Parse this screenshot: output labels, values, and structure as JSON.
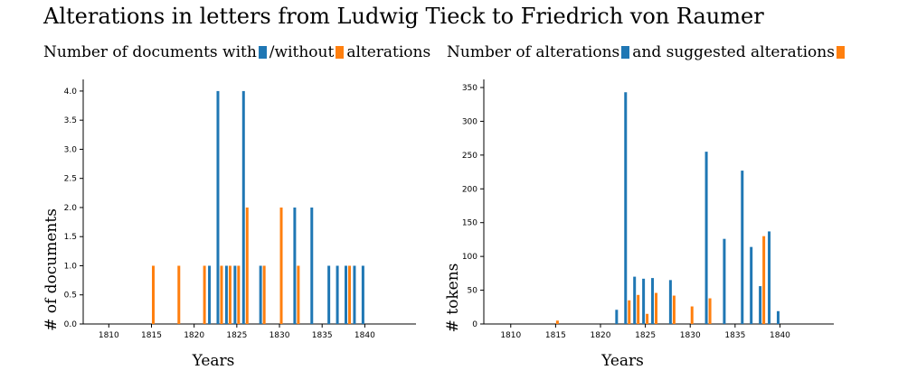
{
  "title": "Alterations in letters from Ludwig Tieck to Friedrich von Raumer",
  "colors": {
    "primary": "#1f77b4",
    "secondary": "#ff7f0e"
  },
  "legends": [
    {
      "part1": "Number of documents with",
      "part2": "/without",
      "part3": "alterations"
    },
    {
      "part1": "Number of alterations",
      "part2": "and suggested alterations",
      "part3": ""
    }
  ],
  "chart_data": [
    {
      "type": "bar",
      "xlabel": "Years",
      "ylabel": "# of documents",
      "xlim": [
        1807,
        1846
      ],
      "ylim": [
        0,
        4.2
      ],
      "xticks": [
        1810,
        1815,
        1820,
        1825,
        1830,
        1835,
        1840
      ],
      "yticks": [
        0.0,
        0.5,
        1.0,
        1.5,
        2.0,
        2.5,
        3.0,
        3.5,
        4.0
      ],
      "ytick_labels": [
        "0.0",
        "0.5",
        "1.0",
        "1.5",
        "2.0",
        "2.5",
        "3.0",
        "3.5",
        "4.0"
      ],
      "series": [
        {
          "x": [
            1822,
            1823,
            1824,
            1825,
            1826,
            1828,
            1832,
            1834,
            1836,
            1837,
            1838,
            1839,
            1840
          ],
          "values": [
            1,
            4,
            1,
            1,
            4,
            1,
            2,
            2,
            1,
            1,
            1,
            1,
            1
          ]
        },
        {
          "x": [
            1815,
            1818,
            1821,
            1823,
            1824,
            1825,
            1826,
            1828,
            1830,
            1832,
            1838
          ],
          "values": [
            1,
            1,
            1,
            1,
            1,
            1,
            2,
            1,
            2,
            1,
            1
          ]
        }
      ]
    },
    {
      "type": "bar",
      "xlabel": "Years",
      "ylabel": "# tokens",
      "xlim": [
        1807,
        1846
      ],
      "ylim": [
        0,
        362
      ],
      "xticks": [
        1810,
        1815,
        1820,
        1825,
        1830,
        1835,
        1840
      ],
      "yticks": [
        0,
        50,
        100,
        150,
        200,
        250,
        300,
        350
      ],
      "ytick_labels": [
        "0",
        "50",
        "100",
        "150",
        "200",
        "250",
        "300",
        "350"
      ],
      "series": [
        {
          "x": [
            1822,
            1823,
            1824,
            1825,
            1826,
            1828,
            1832,
            1834,
            1836,
            1837,
            1838,
            1839,
            1840
          ],
          "values": [
            21,
            343,
            70,
            67,
            68,
            65,
            255,
            126,
            227,
            114,
            56,
            137,
            19
          ]
        },
        {
          "x": [
            1815,
            1823,
            1824,
            1825,
            1826,
            1828,
            1830,
            1832,
            1838
          ],
          "values": [
            5,
            35,
            43,
            15,
            46,
            42,
            26,
            38,
            130
          ]
        }
      ]
    }
  ]
}
